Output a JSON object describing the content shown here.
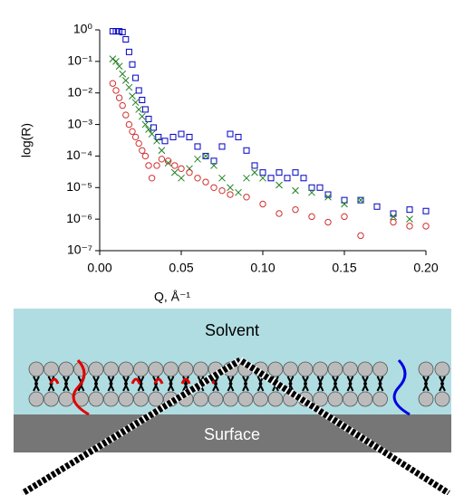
{
  "chart_data": {
    "type": "scatter",
    "xlabel": "Q, Å⁻¹",
    "ylabel": "log(R)",
    "xlim": [
      0,
      0.2
    ],
    "xticks": [
      {
        "value": 0,
        "label": "0.00"
      },
      0.05,
      {
        "value": 0.1,
        "label": "0.10"
      },
      0.15,
      {
        "value": 0.2,
        "label": "0.20"
      }
    ],
    "ylim": [
      1e-07,
      1
    ],
    "log_y": true,
    "yticks": [
      {
        "value": 1,
        "label": "10⁰"
      },
      {
        "value": 0.1,
        "label": "10⁻¹"
      },
      {
        "value": 0.01,
        "label": "10⁻²"
      },
      {
        "value": 0.001,
        "label": "10⁻³"
      },
      {
        "value": 0.0001,
        "label": "10⁻⁴"
      },
      {
        "value": 1e-05,
        "label": "10⁻⁵"
      },
      {
        "value": 1e-06,
        "label": "10⁻⁶"
      },
      {
        "value": 1e-07,
        "label": "10⁻⁷"
      }
    ],
    "series": [
      {
        "color": "#0000c0",
        "marker": "square",
        "x": [
          0.008,
          0.01,
          0.012,
          0.014,
          0.016,
          0.018,
          0.02,
          0.022,
          0.024,
          0.026,
          0.028,
          0.03,
          0.033,
          0.036,
          0.04,
          0.045,
          0.05,
          0.055,
          0.06,
          0.065,
          0.07,
          0.075,
          0.08,
          0.085,
          0.09,
          0.095,
          0.1,
          0.105,
          0.11,
          0.115,
          0.12,
          0.125,
          0.13,
          0.135,
          0.14,
          0.15,
          0.16,
          0.17,
          0.18,
          0.19,
          0.2
        ],
        "values": [
          0.9,
          0.9,
          0.9,
          0.85,
          0.5,
          0.2,
          0.08,
          0.03,
          0.012,
          0.006,
          0.003,
          0.0015,
          0.0008,
          0.0004,
          0.0003,
          0.0004,
          0.0005,
          0.0004,
          0.0002,
          0.0001,
          7e-05,
          0.0002,
          0.0005,
          0.0004,
          0.00015,
          5e-05,
          3e-05,
          2e-05,
          3e-05,
          2e-05,
          3e-05,
          2e-05,
          1e-05,
          1e-05,
          6e-06,
          4e-06,
          4e-06,
          2.5e-06,
          1.5e-06,
          2e-06,
          1.8e-06
        ]
      },
      {
        "color": "#208020",
        "marker": "cross",
        "x": [
          0.008,
          0.01,
          0.012,
          0.014,
          0.016,
          0.018,
          0.02,
          0.022,
          0.024,
          0.026,
          0.028,
          0.03,
          0.032,
          0.035,
          0.038,
          0.042,
          0.046,
          0.05,
          0.055,
          0.06,
          0.065,
          0.07,
          0.075,
          0.08,
          0.085,
          0.09,
          0.095,
          0.1,
          0.11,
          0.12,
          0.13,
          0.14,
          0.15,
          0.16,
          0.18,
          0.19
        ],
        "values": [
          0.12,
          0.1,
          0.07,
          0.04,
          0.025,
          0.015,
          0.008,
          0.005,
          0.003,
          0.0018,
          0.001,
          0.0007,
          0.0005,
          0.0003,
          0.00015,
          6e-05,
          3e-05,
          2e-05,
          4e-05,
          8e-05,
          0.0001,
          5e-05,
          2e-05,
          1e-05,
          7e-06,
          2e-05,
          3e-05,
          2e-05,
          1.2e-05,
          8e-06,
          7e-06,
          5e-06,
          3e-06,
          4e-06,
          1.2e-06,
          1e-06
        ]
      },
      {
        "color": "#d03030",
        "marker": "circle",
        "x": [
          0.008,
          0.01,
          0.012,
          0.014,
          0.016,
          0.018,
          0.02,
          0.022,
          0.024,
          0.026,
          0.028,
          0.03,
          0.032,
          0.035,
          0.038,
          0.042,
          0.046,
          0.05,
          0.055,
          0.06,
          0.065,
          0.07,
          0.075,
          0.08,
          0.09,
          0.1,
          0.11,
          0.12,
          0.13,
          0.14,
          0.15,
          0.16,
          0.18,
          0.19,
          0.2
        ],
        "values": [
          0.02,
          0.012,
          0.007,
          0.004,
          0.002,
          0.001,
          0.0006,
          0.0004,
          0.00025,
          0.00015,
          0.0001,
          5e-05,
          2e-05,
          5e-05,
          8e-05,
          7e-05,
          5e-05,
          4e-05,
          3e-05,
          2e-05,
          1.5e-05,
          1e-05,
          8e-06,
          6e-06,
          5e-06,
          3e-06,
          1.5e-06,
          2e-06,
          1.2e-06,
          8e-07,
          1.2e-06,
          3e-07,
          8e-07,
          6e-07,
          6e-07
        ]
      }
    ]
  },
  "diagram": {
    "solvent": "Solvent",
    "surface": "Surface"
  }
}
